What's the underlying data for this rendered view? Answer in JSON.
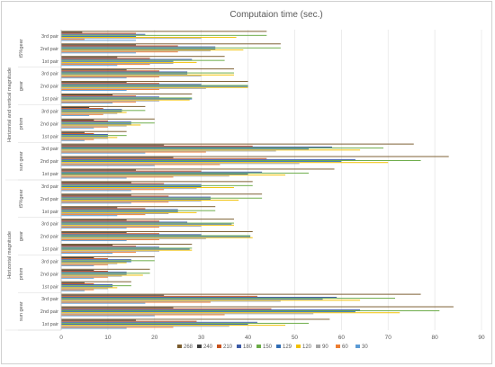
{
  "chart_data": {
    "type": "bar",
    "orientation": "horizontal",
    "title": "Computaion time (sec.)",
    "xlim": [
      0,
      90
    ],
    "xticks": [
      0,
      10,
      20,
      30,
      40,
      50,
      60,
      70,
      80,
      90
    ],
    "grid": true,
    "legend_position": "bottom",
    "series": [
      {
        "name": "268",
        "color": "#7a5c2d"
      },
      {
        "name": "240",
        "color": "#3d3d3d"
      },
      {
        "name": "210",
        "color": "#c8521c"
      },
      {
        "name": "180",
        "color": "#3b5aa6"
      },
      {
        "name": "150",
        "color": "#6aab46"
      },
      {
        "name": "129",
        "color": "#2f6db5"
      },
      {
        "name": "120",
        "color": "#f2c000"
      },
      {
        "name": "90",
        "color": "#a5a5a5"
      },
      {
        "name": "60",
        "color": "#ed7d31"
      },
      {
        "name": "30",
        "color": "#5b9bd5"
      }
    ],
    "groups": [
      {
        "name": "Horizontal and vertical magnitude",
        "subgroups": [
          {
            "name": "t5%gear",
            "pairs": [
              {
                "name": "3rd pair",
                "values": [
                  44,
                  4.5,
                  16,
                  18,
                  44,
                  16,
                  37.5,
                  30,
                  5,
                  16
                ]
              },
              {
                "name": "2nd pair",
                "values": [
                  47,
                  16,
                  25,
                  33,
                  47,
                  33,
                  39,
                  32,
                  25,
                  16
                ]
              },
              {
                "name": "1st pair",
                "values": [
                  35,
                  12,
                  19,
                  28,
                  35,
                  24,
                  29,
                  24,
                  19,
                  12
                ]
              }
            ]
          },
          {
            "name": "gear",
            "pairs": [
              {
                "name": "3rd pair",
                "values": [
                  37,
                  14,
                  21,
                  27,
                  37,
                  27,
                  37,
                  30,
                  21,
                  14
                ]
              },
              {
                "name": "2nd pair",
                "values": [
                  40,
                  14,
                  21,
                  30,
                  40,
                  40,
                  40,
                  31,
                  21,
                  14
                ]
              },
              {
                "name": "1st pair",
                "values": [
                  28,
                  11,
                  16,
                  21,
                  28,
                  28,
                  27.5,
                  21,
                  16,
                  11
                ]
              }
            ]
          },
          {
            "name": "prism",
            "pairs": [
              {
                "name": "3rd pair",
                "values": [
                  18,
                  6,
                  9,
                  13,
                  18,
                  13,
                  14,
                  12,
                  9,
                  6
                ]
              },
              {
                "name": "2nd pair",
                "values": [
                  20,
                  7,
                  10,
                  15,
                  20,
                  15,
                  17,
                  14,
                  10,
                  7
                ]
              },
              {
                "name": "1st pair",
                "values": [
                  14,
                  5,
                  7,
                  10,
                  14,
                  10,
                  12,
                  10,
                  7,
                  5
                ]
              }
            ]
          },
          {
            "name": "sun gear",
            "pairs": [
              {
                "name": "3rd pair",
                "values": [
                  75.5,
                  22,
                  41,
                  58,
                  69,
                  53,
                  64,
                  46,
                  31,
                  18
                ]
              },
              {
                "name": "2nd pair",
                "values": [
                  83,
                  24,
                  44,
                  63,
                  77,
                  60,
                  70,
                  51,
                  34,
                  20
                ]
              },
              {
                "name": "1st pair",
                "values": [
                  58.5,
                  16,
                  30,
                  43,
                  53,
                  40,
                  48,
                  36,
                  24,
                  14
                ]
              }
            ]
          }
        ]
      },
      {
        "name": "Horizontal magnitude",
        "subgroups": [
          {
            "name": "t5%gear",
            "pairs": [
              {
                "name": "3rd pair",
                "values": [
                  41,
                  15,
                  22,
                  30,
                  41,
                  30,
                  37,
                  29,
                  22,
                  15
                ]
              },
              {
                "name": "2nd pair",
                "values": [
                  43,
                  15,
                  23,
                  32,
                  43,
                  32,
                  38,
                  30,
                  23,
                  15
                ]
              },
              {
                "name": "1st pair",
                "values": [
                  33,
                  12,
                  18,
                  25,
                  33,
                  25,
                  29,
                  23,
                  18,
                  12
                ]
              }
            ]
          },
          {
            "name": "gear",
            "pairs": [
              {
                "name": "3rd pair",
                "values": [
                  37,
                  14,
                  21,
                  27,
                  37,
                  36.5,
                  37,
                  30,
                  21,
                  14
                ]
              },
              {
                "name": "2nd pair",
                "values": [
                  41,
                  14,
                  21,
                  30,
                  40.5,
                  40.5,
                  41,
                  31,
                  21,
                  14
                ]
              },
              {
                "name": "1st pair",
                "values": [
                  28,
                  11,
                  16,
                  21,
                  28,
                  27.5,
                  28,
                  21,
                  16,
                  11
                ]
              }
            ]
          },
          {
            "name": "prism",
            "pairs": [
              {
                "name": "3rd pair",
                "values": [
                  20,
                  7,
                  10,
                  15,
                  20,
                  15,
                  14,
                  12,
                  10,
                  7
                ]
              },
              {
                "name": "2nd pair",
                "values": [
                  19,
                  7,
                  10,
                  14,
                  19,
                  14,
                  17.5,
                  13,
                  10,
                  7
                ]
              },
              {
                "name": "1st pair",
                "values": [
                  15,
                  5,
                  7,
                  11,
                  15,
                  11,
                  12,
                  10,
                  7,
                  5
                ]
              }
            ]
          },
          {
            "name": "sun gear",
            "pairs": [
              {
                "name": "3rd pair",
                "values": [
                  77,
                  22,
                  42,
                  59,
                  71.5,
                  56,
                  64,
                  47,
                  32,
                  18
                ]
              },
              {
                "name": "2nd pair",
                "values": [
                  84,
                  24,
                  45,
                  64,
                  81,
                  63,
                  72.5,
                  54,
                  35,
                  20
                ]
              },
              {
                "name": "1st pair",
                "values": [
                  57.5,
                  16,
                  29,
                  42,
                  53,
                  40,
                  48,
                  36,
                  24,
                  14
                ]
              }
            ]
          }
        ]
      }
    ]
  }
}
